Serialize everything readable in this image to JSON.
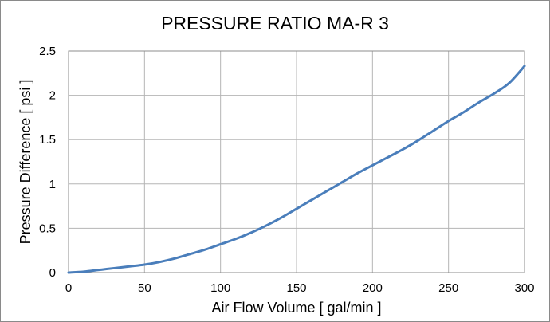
{
  "chart_data": {
    "type": "line",
    "title": "PRESSURE RATIO MA-R 3",
    "xlabel": "Air Flow Volume [ gal/min ]",
    "ylabel": "Pressure Difference [ psi ]",
    "xlim": [
      0,
      300
    ],
    "ylim": [
      0,
      2.5
    ],
    "x_ticks": [
      0,
      50,
      100,
      150,
      200,
      250,
      300
    ],
    "y_ticks": [
      0,
      0.5,
      1,
      1.5,
      2,
      2.5
    ],
    "x_tick_labels": [
      "0",
      "50",
      "100",
      "150",
      "200",
      "250",
      "300"
    ],
    "y_tick_labels": [
      "0",
      "0.5",
      "1",
      "1.5",
      "2",
      "2.5"
    ],
    "grid": true,
    "series_color": "#4a7ebb",
    "series": [
      {
        "x": [
          0,
          10,
          20,
          30,
          40,
          50,
          60,
          70,
          80,
          90,
          100,
          110,
          120,
          130,
          140,
          150,
          160,
          170,
          180,
          190,
          200,
          210,
          220,
          230,
          240,
          250,
          260,
          270,
          280,
          290,
          300
        ],
        "y": [
          0,
          0.01,
          0.03,
          0.05,
          0.07,
          0.09,
          0.12,
          0.16,
          0.21,
          0.26,
          0.32,
          0.38,
          0.45,
          0.53,
          0.62,
          0.72,
          0.82,
          0.92,
          1.02,
          1.12,
          1.21,
          1.3,
          1.39,
          1.49,
          1.6,
          1.71,
          1.81,
          1.92,
          2.02,
          2.14,
          2.33
        ]
      }
    ]
  }
}
